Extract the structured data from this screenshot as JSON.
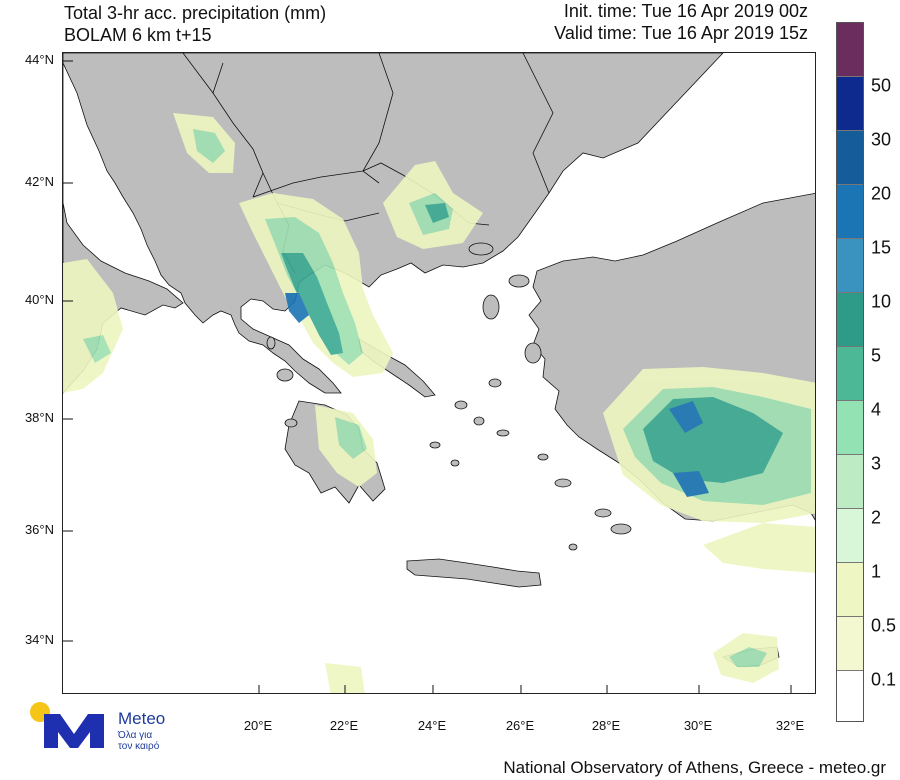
{
  "header": {
    "title_line1": "Total 3-hr acc. precipitation (mm)",
    "title_line2": "BOLAM 6 km t+15",
    "init_time": "Init. time: Tue 16 Apr 2019 00z",
    "valid_time": "Valid time: Tue 16 Apr 2019 15z"
  },
  "axes": {
    "lat_labels": [
      "44°N",
      "42°N",
      "40°N",
      "38°N",
      "36°N",
      "34°N"
    ],
    "lon_labels": [
      "20°E",
      "22°E",
      "24°E",
      "26°E",
      "28°E",
      "30°E",
      "32°E"
    ]
  },
  "legend": {
    "labels": [
      "50",
      "30",
      "20",
      "15",
      "10",
      "5",
      "4",
      "3",
      "2",
      "1",
      "0.5",
      "0.1"
    ],
    "colors": [
      "#6b2c5e",
      "#0f2a8e",
      "#155c9a",
      "#1b74b4",
      "#3a93bf",
      "#2e9a88",
      "#4cb895",
      "#93e2b4",
      "#bdecc4",
      "#d8f7d8",
      "#eef7c4",
      "#f4f8d0",
      "#ffffff"
    ]
  },
  "colors": {
    "land": "#bdbdbd",
    "sea": "#ffffff",
    "precip_light": "#eef6c0",
    "precip_mid": "#9fe0b1",
    "precip_heavy": "#3aa991",
    "precip_max": "#1b74b4"
  },
  "logo": {
    "name": "Meteo",
    "tagline_line1": "Όλα για",
    "tagline_line2": "τον καιρό"
  },
  "footer": {
    "credit": "National Observatory of Athens, Greece - meteo.gr"
  }
}
